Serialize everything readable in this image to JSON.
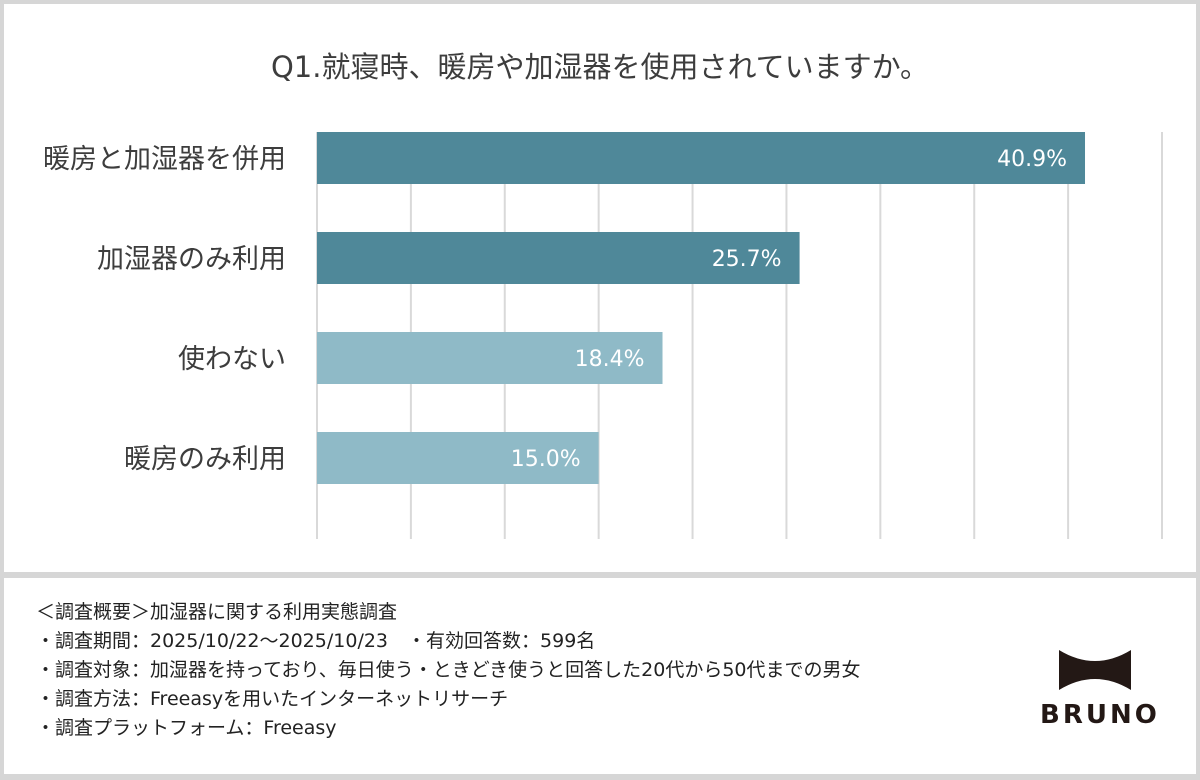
{
  "chart_data": {
    "type": "bar",
    "orientation": "horizontal",
    "title": "Q1.就寝時、暖房や加湿器を使用されていますか。",
    "categories": [
      "暖房と加湿器を併用",
      "加湿器のみ利用",
      "使わない",
      "暖房のみ利用"
    ],
    "values": [
      40.9,
      25.7,
      18.4,
      15.0
    ],
    "data_labels": [
      "40.9%",
      "25.7%",
      "18.4%",
      "15.0%"
    ],
    "xlim": [
      0,
      45
    ],
    "grid_step": 5,
    "grid": true,
    "unit": "%",
    "colors": [
      "#4f8899",
      "#4f8899",
      "#8fbac7",
      "#8fbac7"
    ],
    "grid_color": "#d9d9d9"
  },
  "footer": {
    "lines": [
      "＜調査概要＞加湿器に関する利用実態調査",
      "・調査期間：2025/10/22～2025/10/23　・有効回答数：599名",
      "・調査対象：加湿器を持っており、毎日使う・ときどき使うと回答した20代から50代までの男女",
      "・調査方法：Freeasyを用いたインターネットリサーチ",
      "・調査プラットフォーム：Freeasy"
    ],
    "logo": "BRUNO"
  }
}
